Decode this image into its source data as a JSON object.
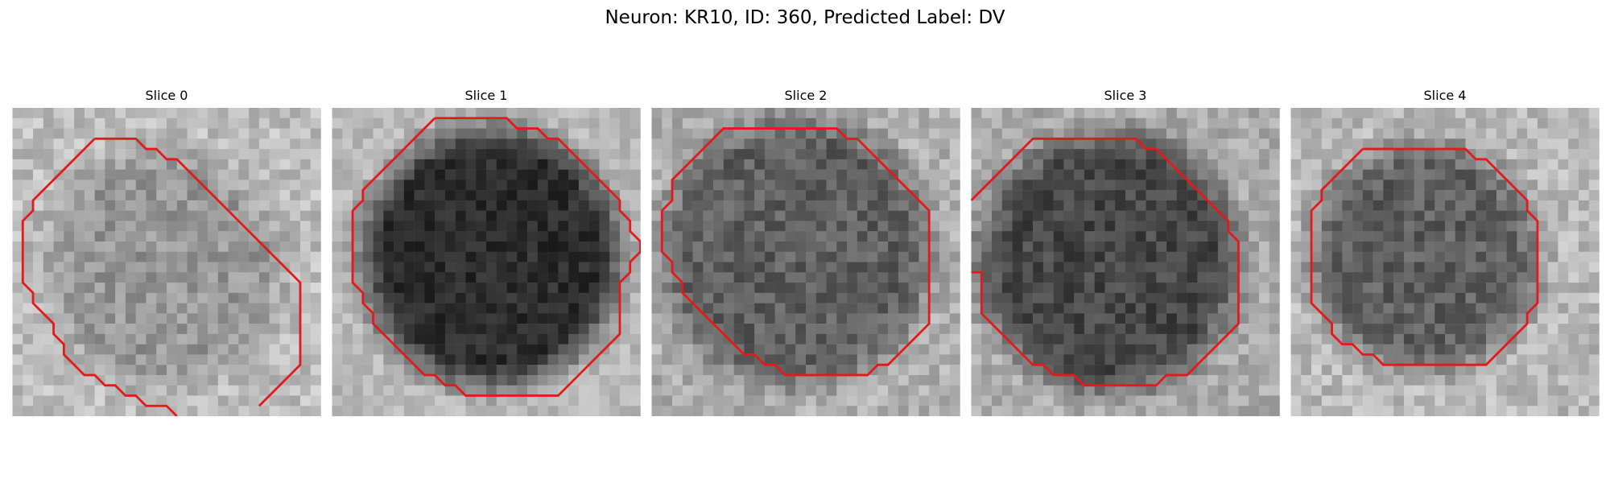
{
  "figure": {
    "title": "Neuron: KR10, ID: 360, Predicted Label: DV"
  },
  "panels": [
    {
      "title": "Slice 0"
    },
    {
      "title": "Slice 1"
    },
    {
      "title": "Slice 2"
    },
    {
      "title": "Slice 3"
    },
    {
      "title": "Slice 4"
    }
  ],
  "colors": {
    "contour": "#e31a1c",
    "background": "#ffffff"
  }
}
